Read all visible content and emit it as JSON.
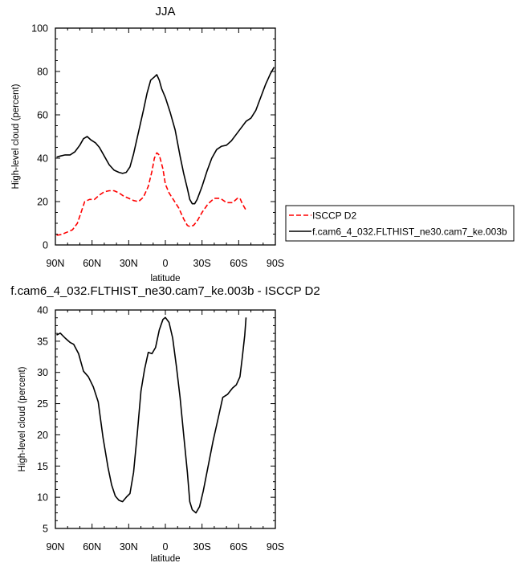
{
  "chart_data": [
    {
      "type": "line",
      "title": "JJA",
      "xlabel": "latitude",
      "ylabel": "High-level cloud (percent)",
      "xlim": [
        90,
        -90
      ],
      "ylim": [
        0,
        100
      ],
      "xticks": [
        90,
        60,
        30,
        0,
        -30,
        -60,
        -90
      ],
      "xtick_labels": [
        "90N",
        "60N",
        "30N",
        "0",
        "30S",
        "60S",
        "90S"
      ],
      "yticks": [
        0,
        20,
        40,
        60,
        80,
        100
      ],
      "ytick_labels": [
        "0",
        "20",
        "40",
        "60",
        "80",
        "100"
      ],
      "legend_position": "right, outside plot",
      "series": [
        {
          "name": "ISCCP D2",
          "color": "#ff0000",
          "dash": "dashed",
          "x": [
            89,
            85,
            80,
            76,
            72,
            69,
            66,
            62,
            58,
            54,
            50,
            46,
            42,
            38,
            34,
            30,
            26,
            22,
            18,
            14,
            11,
            9,
            7,
            5,
            2,
            0,
            -3,
            -7,
            -11,
            -15,
            -18,
            -20,
            -23,
            -26,
            -30,
            -35,
            -40,
            -45,
            -50,
            -55,
            -59,
            -61,
            -63,
            -66
          ],
          "y": [
            4.5,
            4.8,
            6,
            7,
            10,
            15,
            20,
            21,
            21,
            23,
            24.5,
            25,
            25,
            24,
            22.5,
            21.5,
            20.5,
            20,
            22,
            27,
            34,
            40,
            42.5,
            41.5,
            35,
            28,
            24,
            20.5,
            17,
            12,
            9,
            8.5,
            9,
            11,
            15,
            19,
            21.5,
            21.5,
            19.5,
            19.5,
            21.5,
            21.5,
            19,
            16
          ]
        },
        {
          "name": "f.cam6_4_032.FLTHIST_ne30.cam7_ke.003b",
          "color": "#000000",
          "dash": "solid",
          "x": [
            89,
            86,
            82,
            78,
            74,
            70,
            67,
            64,
            61,
            57,
            54,
            50,
            46,
            42,
            38,
            35,
            32,
            29,
            26,
            22,
            18,
            15,
            12,
            9,
            7,
            5,
            3,
            0,
            -4,
            -8,
            -12,
            -15,
            -18,
            -20,
            -22,
            -24,
            -26,
            -30,
            -34,
            -38,
            -42,
            -46,
            -50,
            -54,
            -58,
            -62,
            -66,
            -70,
            -74,
            -78,
            -82,
            -86,
            -89
          ],
          "y": [
            40.5,
            41,
            41.5,
            41.5,
            43,
            46,
            49,
            50,
            48.5,
            47,
            45,
            41,
            37,
            34.5,
            33.5,
            33,
            33.5,
            36,
            42,
            52,
            62,
            70,
            76,
            77.5,
            78.5,
            76,
            72,
            68,
            61,
            53,
            41,
            33,
            26,
            21,
            19,
            19,
            21,
            27,
            34,
            40,
            44,
            45.5,
            46,
            48,
            51,
            54,
            57,
            58.5,
            62,
            68,
            74,
            79,
            82
          ]
        }
      ]
    },
    {
      "type": "line",
      "title": "f.cam6_4_032.FLTHIST_ne30.cam7_ke.003b - ISCCP D2",
      "xlabel": "latitude",
      "ylabel": "High-level cloud (percent)",
      "xlim": [
        90,
        -90
      ],
      "ylim": [
        5,
        40
      ],
      "xticks": [
        90,
        60,
        30,
        0,
        -30,
        -60,
        -90
      ],
      "xtick_labels": [
        "90N",
        "60N",
        "30N",
        "0",
        "30S",
        "60S",
        "90S"
      ],
      "yticks": [
        5,
        10,
        15,
        20,
        25,
        30,
        35,
        40
      ],
      "ytick_labels": [
        "5",
        "10",
        "15",
        "20",
        "25",
        "30",
        "35",
        "40"
      ],
      "series": [
        {
          "color": "#000000",
          "dash": "solid",
          "x": [
            89,
            86,
            82,
            78,
            75,
            71,
            67,
            63,
            59,
            55,
            51,
            47,
            44,
            41,
            38,
            35,
            32,
            29,
            26,
            23,
            20,
            17,
            14,
            11,
            8,
            5,
            2,
            0,
            -3,
            -6,
            -9,
            -12,
            -15,
            -18,
            -20,
            -22,
            -25,
            -28,
            -31,
            -35,
            -39,
            -43,
            -47,
            -51,
            -55,
            -58,
            -61,
            -63,
            -65,
            -66
          ],
          "y": [
            36,
            36.3,
            35.5,
            34.8,
            34.5,
            33,
            30.2,
            29.3,
            27.7,
            25.3,
            19.5,
            14.8,
            12,
            10.2,
            9.5,
            9.3,
            10,
            10.6,
            14,
            20.2,
            27,
            30.5,
            33.2,
            33,
            34,
            36.8,
            38.5,
            38.8,
            38,
            35.5,
            31,
            26,
            20,
            14,
            9.3,
            8,
            7.5,
            8.5,
            11,
            15,
            19,
            22.5,
            26,
            26.5,
            27.5,
            28,
            29.3,
            32.5,
            36,
            38.8
          ]
        }
      ]
    }
  ]
}
